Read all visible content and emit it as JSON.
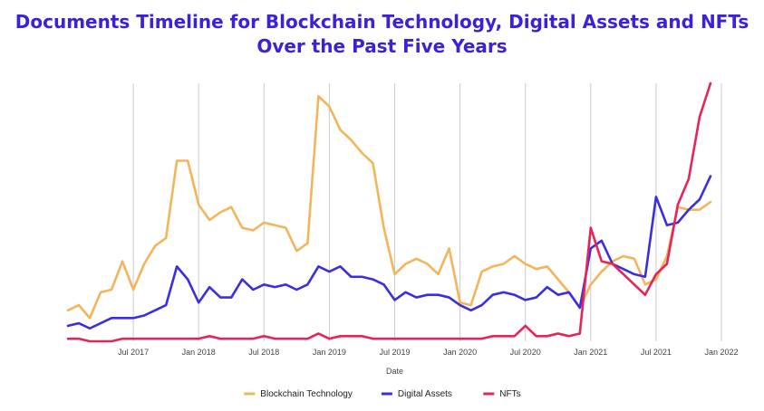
{
  "colors": {
    "title": "#3b22d6",
    "gridline": "#cccccc",
    "axis_text": "#444444",
    "blockchain": "#f3b55a",
    "digital": "#3a2ee0",
    "nfts": "#e5245a"
  },
  "chart_data": {
    "type": "line",
    "title_lines": [
      "Documents Timeline for Blockchain Technology, Digital Assets and NFTs",
      "Over the Past Five Years"
    ],
    "xlabel": "Date",
    "ylabel": "",
    "x_ticks": [
      {
        "label": "Jul 2017",
        "value": 6
      },
      {
        "label": "Jan 2018",
        "value": 12
      },
      {
        "label": "Jul 2018",
        "value": 18
      },
      {
        "label": "Jan 2019",
        "value": 24
      },
      {
        "label": "Jul 2019",
        "value": 30
      },
      {
        "label": "Jan 2020",
        "value": 36
      },
      {
        "label": "Jul 2020",
        "value": 42
      },
      {
        "label": "Jan 2021",
        "value": 48
      },
      {
        "label": "Jul 2021",
        "value": 54
      },
      {
        "label": "Jan 2022",
        "value": 60
      }
    ],
    "x_range": [
      0,
      60
    ],
    "y_range": [
      0,
      100
    ],
    "grid": "vertical",
    "legend_position": "bottom",
    "series": [
      {
        "name": "Blockchain Technology",
        "color_key": "blockchain",
        "values": [
          12,
          14,
          9,
          19,
          20,
          31,
          20,
          30,
          37,
          40,
          70,
          70,
          53,
          47,
          50,
          52,
          44,
          43,
          46,
          45,
          44,
          35,
          38,
          95,
          91,
          82,
          78,
          73,
          69,
          44,
          26,
          30,
          32,
          30,
          26,
          36,
          15,
          14,
          27,
          29,
          30,
          33,
          30,
          28,
          29,
          24,
          19,
          13,
          22,
          27,
          31,
          33,
          32,
          22,
          24,
          33,
          52,
          51,
          51,
          54
        ]
      },
      {
        "name": "Digital Assets",
        "color_key": "digital",
        "values": [
          6,
          7,
          5,
          7,
          9,
          9,
          9,
          10,
          12,
          14,
          29,
          24,
          15,
          21,
          17,
          17,
          24,
          20,
          22,
          21,
          22,
          20,
          22,
          29,
          27,
          29,
          25,
          25,
          24,
          22,
          16,
          19,
          17,
          18,
          18,
          17,
          14,
          12,
          14,
          18,
          19,
          18,
          16,
          17,
          21,
          18,
          19,
          13,
          36,
          39,
          30,
          28,
          26,
          25,
          56,
          45,
          46,
          51,
          55,
          64
        ]
      },
      {
        "name": "NFTs",
        "color_key": "nfts",
        "values": [
          1,
          1,
          0,
          0,
          0,
          1,
          1,
          1,
          1,
          1,
          1,
          1,
          1,
          2,
          1,
          1,
          1,
          1,
          2,
          1,
          1,
          1,
          1,
          3,
          1,
          2,
          2,
          2,
          1,
          1,
          1,
          1,
          1,
          1,
          1,
          1,
          1,
          1,
          1,
          2,
          2,
          2,
          6,
          2,
          2,
          3,
          2,
          3,
          44,
          31,
          30,
          26,
          22,
          18,
          26,
          30,
          53,
          63,
          87,
          100
        ]
      }
    ]
  }
}
